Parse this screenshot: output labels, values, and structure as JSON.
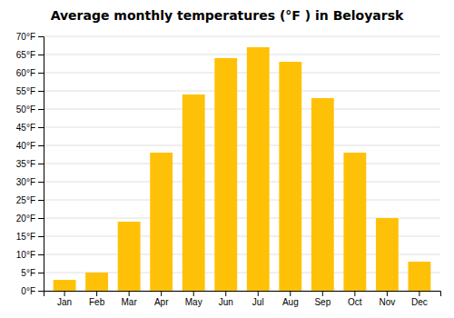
{
  "chart_data": {
    "type": "bar",
    "title": "Average monthly temperatures (°F ) in Beloyarsk",
    "categories": [
      "Jan",
      "Feb",
      "Mar",
      "Apr",
      "May",
      "Jun",
      "Jul",
      "Aug",
      "Sep",
      "Oct",
      "Nov",
      "Dec"
    ],
    "values": [
      3,
      5,
      19,
      38,
      54,
      64,
      67,
      63,
      53,
      38,
      20,
      8
    ],
    "color": "#FFC107",
    "ylim": [
      0,
      70
    ],
    "yticks": [
      {
        "value": 0,
        "label": "0°F"
      },
      {
        "value": 5,
        "label": "5°F"
      },
      {
        "value": 10,
        "label": "10°F"
      },
      {
        "value": 15,
        "label": "15°F"
      },
      {
        "value": 20,
        "label": "20°F"
      },
      {
        "value": 25,
        "label": "25°F"
      },
      {
        "value": 30,
        "label": "30°F"
      },
      {
        "value": 35,
        "label": "35°F"
      },
      {
        "value": 40,
        "label": "40°F"
      },
      {
        "value": 45,
        "label": "45°F"
      },
      {
        "value": 50,
        "label": "50°F"
      },
      {
        "value": 55,
        "label": "55°F"
      },
      {
        "value": 60,
        "label": "60°F"
      },
      {
        "value": 65,
        "label": "65°F"
      },
      {
        "value": 70,
        "label": "70°F"
      }
    ],
    "grid": true
  }
}
